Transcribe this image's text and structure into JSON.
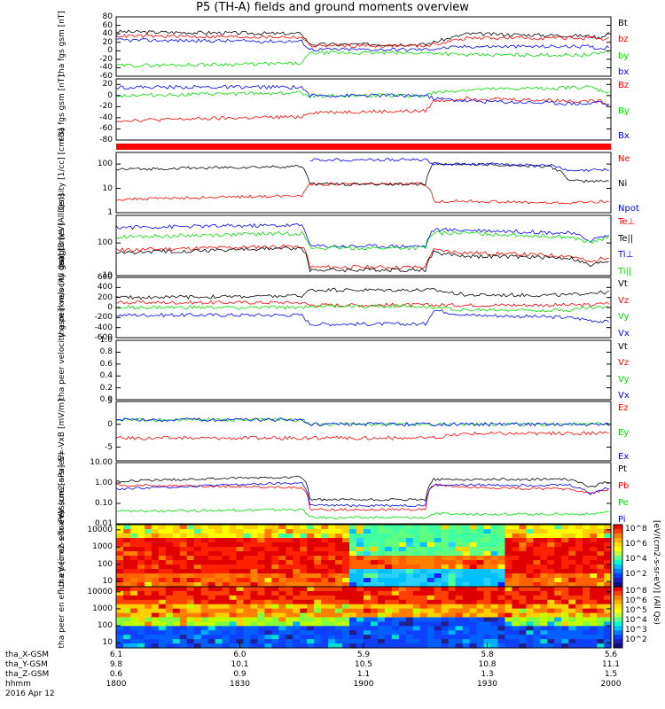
{
  "title": "P5 (TH-A) fields and ground moments overview",
  "date_label": "2016 Apr 12",
  "orbit": {
    "labels": [
      "tha_X-GSM",
      "tha_Y-GSM",
      "tha_Z-GSM",
      "hhmm"
    ],
    "rows": [
      [
        "6.1",
        "6.0",
        "5.9",
        "5.8",
        "5.6"
      ],
      [
        "9.8",
        "10.1",
        "10.5",
        "10.8",
        "11.1"
      ],
      [
        "0.6",
        "0.9",
        "1.1",
        "1.3",
        "1.5"
      ],
      [
        "1800",
        "1830",
        "1900",
        "1930",
        "2000"
      ]
    ]
  },
  "colorbar": {
    "unit": "[eV/(cm2-s-sr-eV)] (All Qs)",
    "top_ticks": [
      "10^8",
      "10^6",
      "10^4",
      "10^2"
    ],
    "bottom_ticks": [
      "10^8",
      "10^6",
      "10^5",
      "10^4",
      "10^3",
      "10^2"
    ]
  },
  "colors": {
    "black": "#000000",
    "red": "#ff0000",
    "green": "#00dd00",
    "blue": "#0000ff"
  },
  "chart_data": [
    {
      "type": "line",
      "ylabel": "tha fgs gsm [nT]",
      "yticks": [
        "80",
        "60",
        "40",
        "20",
        "0",
        "-20",
        "-40",
        "-60"
      ],
      "ylim": [
        -60,
        80
      ],
      "x": [
        1800,
        1845,
        1847,
        1915,
        1917,
        1925,
        1955,
        1957,
        2000
      ],
      "series": [
        {
          "name": "Bt",
          "color": "#000000",
          "values": [
            45,
            40,
            15,
            15,
            20,
            40,
            35,
            30,
            45
          ]
        },
        {
          "name": "bz",
          "color": "#ff0000",
          "values": [
            35,
            32,
            12,
            12,
            15,
            30,
            30,
            25,
            30
          ]
        },
        {
          "name": "by",
          "color": "#00dd00",
          "values": [
            -35,
            -30,
            -5,
            -5,
            -5,
            -10,
            -10,
            -5,
            0
          ]
        },
        {
          "name": "bx",
          "color": "#0000ff",
          "values": [
            25,
            22,
            3,
            3,
            5,
            10,
            10,
            5,
            10
          ]
        }
      ]
    },
    {
      "type": "line",
      "ylabel": "tha fgs gsm [nT]",
      "yticks": [
        "20",
        "0",
        "-20",
        "-40",
        "-60",
        "-80"
      ],
      "ylim": [
        -80,
        30
      ],
      "x": [
        1800,
        1845,
        1847,
        1915,
        1917,
        1925,
        1955,
        1957,
        2000
      ],
      "series": [
        {
          "name": "Bz",
          "color": "#ff0000",
          "values": [
            -45,
            -38,
            -30,
            -28,
            -10,
            -5,
            -10,
            -10,
            -15
          ]
        },
        {
          "name": "By",
          "color": "#00dd00",
          "values": [
            0,
            5,
            0,
            0,
            5,
            10,
            15,
            10,
            5
          ]
        },
        {
          "name": "Bx",
          "color": "#0000ff",
          "values": [
            15,
            15,
            0,
            0,
            -5,
            -10,
            -15,
            -10,
            -20
          ]
        }
      ]
    },
    {
      "type": "line",
      "ylabel": "Density [1/cc] [cm-3]",
      "yscale": "log",
      "yticks": [
        "100",
        "10",
        "1"
      ],
      "ylim": [
        1,
        300
      ],
      "x": [
        1800,
        1845,
        1847,
        1915,
        1917,
        1925,
        1945,
        1950,
        2000
      ],
      "series": [
        {
          "name": "Ne",
          "color": "#ff0000",
          "values": [
            3.5,
            5,
            15,
            15,
            3,
            3,
            2.5,
            2.5,
            3
          ]
        },
        {
          "name": "Ni",
          "color": "#000000",
          "values": [
            60,
            80,
            15,
            15,
            100,
            100,
            80,
            20,
            20
          ]
        },
        {
          "name": "Npot",
          "color": "#0000ff",
          "values": [
            null,
            null,
            150,
            150,
            100,
            100,
            90,
            50,
            60
          ]
        }
      ]
    },
    {
      "type": "line",
      "ylabel": "magt3 [eV]",
      "yscale": "log",
      "yticks": [
        "100",
        "10"
      ],
      "ylim": [
        10,
        700
      ],
      "x": [
        1800,
        1845,
        1847,
        1915,
        1917,
        1925,
        1950,
        1955,
        2000
      ],
      "series": [
        {
          "name": "Te⊥",
          "color": "#ff0000",
          "values": [
            60,
            80,
            18,
            18,
            60,
            50,
            40,
            25,
            40
          ]
        },
        {
          "name": "Te||",
          "color": "#000000",
          "values": [
            50,
            70,
            15,
            15,
            50,
            40,
            35,
            20,
            30
          ]
        },
        {
          "name": "Ti⊥",
          "color": "#0000ff",
          "values": [
            300,
            350,
            80,
            80,
            250,
            250,
            200,
            120,
            180
          ]
        },
        {
          "name": "Ti||",
          "color": "#00dd00",
          "values": [
            150,
            200,
            70,
            70,
            200,
            200,
            150,
            100,
            150
          ]
        }
      ]
    },
    {
      "type": "line",
      "ylabel": "tha peir velocity gsm [km/s (All Qs)]",
      "yticks": [
        "600",
        "400",
        "200",
        "0",
        "-200",
        "-400",
        "-600"
      ],
      "ylim": [
        -600,
        600
      ],
      "x": [
        1800,
        1845,
        1847,
        1915,
        1917,
        1925,
        1950,
        1955,
        2000
      ],
      "series": [
        {
          "name": "Vt",
          "color": "#000000",
          "values": [
            200,
            230,
            350,
            350,
            350,
            250,
            250,
            300,
            300
          ]
        },
        {
          "name": "Vz",
          "color": "#ff0000",
          "values": [
            100,
            100,
            50,
            50,
            50,
            50,
            50,
            50,
            100
          ]
        },
        {
          "name": "Vy",
          "color": "#00dd00",
          "values": [
            0,
            0,
            30,
            30,
            0,
            -50,
            -50,
            0,
            0
          ]
        },
        {
          "name": "Vx",
          "color": "#0000ff",
          "values": [
            -150,
            -150,
            -330,
            -330,
            -50,
            -150,
            -200,
            -250,
            -300
          ]
        }
      ]
    },
    {
      "type": "line",
      "ylabel": "tha peer velocity gsm [km/s (All Qs)]",
      "yticks": [
        "1.0",
        "0.8",
        "0.6",
        "0.4",
        "0.2",
        "0.0"
      ],
      "ylim": [
        0,
        1
      ],
      "x": [
        1800,
        2000
      ],
      "series": [
        {
          "name": "Vt",
          "color": "#000000",
          "values": [
            null,
            null
          ]
        },
        {
          "name": "Vz",
          "color": "#ff0000",
          "values": [
            null,
            null
          ]
        },
        {
          "name": "Vy",
          "color": "#00dd00",
          "values": [
            null,
            null
          ]
        },
        {
          "name": "Vx",
          "color": "#0000ff",
          "values": [
            null,
            null
          ]
        }
      ]
    },
    {
      "type": "line",
      "ylabel": "E=-VxB [mV/m]",
      "yticks": [
        "5",
        "0",
        "-5"
      ],
      "ylim": [
        -8,
        5
      ],
      "x": [
        1800,
        1845,
        1847,
        1915,
        1917,
        1925,
        1945,
        1955,
        2000
      ],
      "series": [
        {
          "name": "Ez",
          "color": "#ff0000",
          "values": [
            -3,
            -3,
            -3,
            -3,
            -3,
            -2,
            -2,
            -2,
            -2
          ]
        },
        {
          "name": "Ey",
          "color": "#00dd00",
          "values": [
            1,
            1,
            0,
            0,
            0,
            0,
            0,
            0,
            0
          ]
        },
        {
          "name": "Ex",
          "color": "#0000ff",
          "values": [
            1,
            1,
            0,
            0,
            0,
            0,
            0,
            0,
            0
          ]
        }
      ]
    },
    {
      "type": "line",
      "ylabel": "Pressure [nPa]",
      "yscale": "log",
      "yticks": [
        "10.00",
        "1.00",
        "0.10",
        "0.01"
      ],
      "ylim": [
        0.01,
        10
      ],
      "x": [
        1800,
        1845,
        1847,
        1915,
        1917,
        1925,
        1950,
        1955,
        2000
      ],
      "series": [
        {
          "name": "Pt",
          "color": "#000000",
          "values": [
            1.2,
            2,
            0.15,
            0.15,
            1.5,
            1.5,
            1.5,
            0.6,
            1.2
          ]
        },
        {
          "name": "Pb",
          "color": "#ff0000",
          "values": [
            0.8,
            0.6,
            0.05,
            0.05,
            0.8,
            0.6,
            0.5,
            0.3,
            0.5
          ]
        },
        {
          "name": "Pe",
          "color": "#00dd00",
          "values": [
            0.04,
            0.05,
            0.02,
            0.02,
            0.03,
            0.03,
            0.03,
            0.03,
            0.04
          ]
        },
        {
          "name": "Pi",
          "color": "#0000ff",
          "values": [
            0.5,
            1,
            0.08,
            0.08,
            0.8,
            0.8,
            0.8,
            0.3,
            0.6
          ]
        }
      ]
    },
    {
      "type": "heatmap",
      "ylabel": "tha peir en eflux eV (cm2-s-sr-eV)",
      "yscale": "log",
      "yticks": [
        "10000",
        "1000",
        "100",
        "10"
      ],
      "ylim": [
        5,
        20000
      ]
    },
    {
      "type": "heatmap",
      "ylabel": "tha peer en eflux eV (cm2-s-sr-eV)",
      "yscale": "log",
      "yticks": [
        "10000",
        "1000",
        "100",
        "10"
      ],
      "ylim": [
        5,
        20000
      ]
    }
  ]
}
